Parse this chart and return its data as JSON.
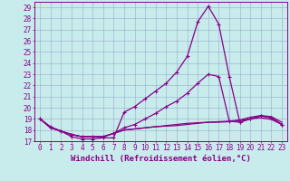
{
  "xlabel": "Windchill (Refroidissement éolien,°C)",
  "bg_color": "#c8ecec",
  "line_color": "#880088",
  "grid_color": "#99aacc",
  "xlim": [
    -0.5,
    23.5
  ],
  "ylim": [
    17,
    29.5
  ],
  "xticks": [
    0,
    1,
    2,
    3,
    4,
    5,
    6,
    7,
    8,
    9,
    10,
    11,
    12,
    13,
    14,
    15,
    16,
    17,
    18,
    19,
    20,
    21,
    22,
    23
  ],
  "yticks": [
    17,
    18,
    19,
    20,
    21,
    22,
    23,
    24,
    25,
    26,
    27,
    28,
    29
  ],
  "line1_x": [
    0,
    1,
    2,
    3,
    4,
    5,
    6,
    7,
    8,
    9,
    10,
    11,
    12,
    13,
    14,
    15,
    16,
    17,
    18,
    19,
    20,
    21,
    22,
    23
  ],
  "line1_y": [
    19.0,
    18.3,
    17.9,
    17.4,
    17.2,
    17.2,
    17.3,
    17.3,
    19.6,
    20.1,
    20.8,
    21.5,
    22.2,
    23.2,
    24.6,
    27.7,
    29.1,
    27.5,
    22.8,
    18.7,
    19.0,
    19.3,
    19.1,
    18.5
  ],
  "line2_x": [
    0,
    1,
    2,
    3,
    4,
    5,
    6,
    7,
    8,
    9,
    10,
    11,
    12,
    13,
    14,
    15,
    16,
    17,
    18,
    19,
    20,
    21,
    22,
    23
  ],
  "line2_y": [
    19.0,
    18.2,
    17.9,
    17.6,
    17.4,
    17.4,
    17.4,
    17.7,
    18.0,
    18.1,
    18.2,
    18.3,
    18.35,
    18.4,
    18.5,
    18.6,
    18.7,
    18.7,
    18.75,
    18.85,
    19.0,
    19.1,
    18.95,
    18.5
  ],
  "line3_x": [
    0,
    1,
    2,
    3,
    4,
    5,
    6,
    7,
    8,
    9,
    10,
    11,
    12,
    13,
    14,
    15,
    16,
    17,
    18,
    19,
    20,
    21,
    22,
    23
  ],
  "line3_y": [
    19.0,
    18.2,
    17.9,
    17.6,
    17.4,
    17.4,
    17.4,
    17.7,
    18.0,
    18.1,
    18.2,
    18.3,
    18.4,
    18.5,
    18.6,
    18.65,
    18.7,
    18.75,
    18.8,
    18.9,
    19.15,
    19.3,
    19.2,
    18.7
  ],
  "line4_x": [
    0,
    1,
    2,
    3,
    4,
    5,
    6,
    7,
    8,
    9,
    10,
    11,
    12,
    13,
    14,
    15,
    16,
    17,
    18,
    19,
    20,
    21,
    22,
    23
  ],
  "line4_y": [
    19.0,
    18.2,
    17.9,
    17.6,
    17.4,
    17.4,
    17.4,
    17.7,
    18.2,
    18.5,
    19.0,
    19.5,
    20.1,
    20.6,
    21.3,
    22.2,
    23.0,
    22.8,
    18.8,
    18.7,
    19.0,
    19.25,
    19.1,
    18.5
  ],
  "marker_size": 2.5,
  "line_width": 0.9,
  "xlabel_fontsize": 6.5,
  "tick_fontsize": 5.5
}
